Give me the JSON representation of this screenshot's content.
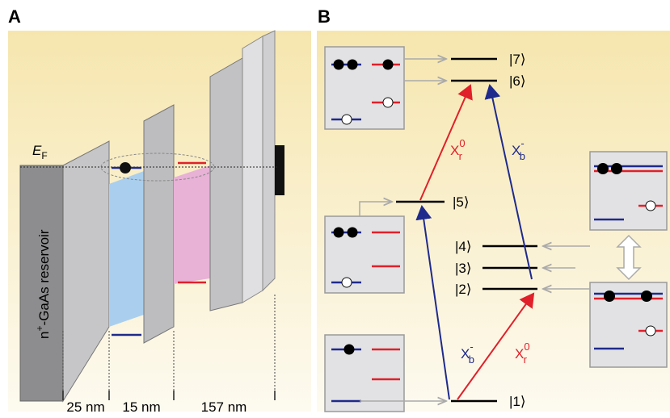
{
  "panel_a": {
    "label": "A",
    "fermi_label": {
      "base": "E",
      "sub": "F"
    },
    "reservoir_label": {
      "base": "n",
      "sup": "+",
      "rest": "-GaAs reservoir"
    },
    "dimensions": [
      "25 nm",
      "15 nm",
      "157 nm"
    ]
  },
  "panel_b": {
    "label": "B",
    "levels": [
      "|7⟩",
      "|6⟩",
      "|5⟩",
      "|4⟩",
      "|3⟩",
      "|2⟩",
      "|1⟩"
    ],
    "transitions": [
      {
        "base": "X",
        "sub": "r",
        "sup": "0"
      },
      {
        "base": "X",
        "sub": "b",
        "sup": "-"
      },
      {
        "base": "X",
        "sub": "b",
        "sup": "-"
      },
      {
        "base": "X",
        "sub": "r",
        "sup": "0"
      }
    ]
  }
}
